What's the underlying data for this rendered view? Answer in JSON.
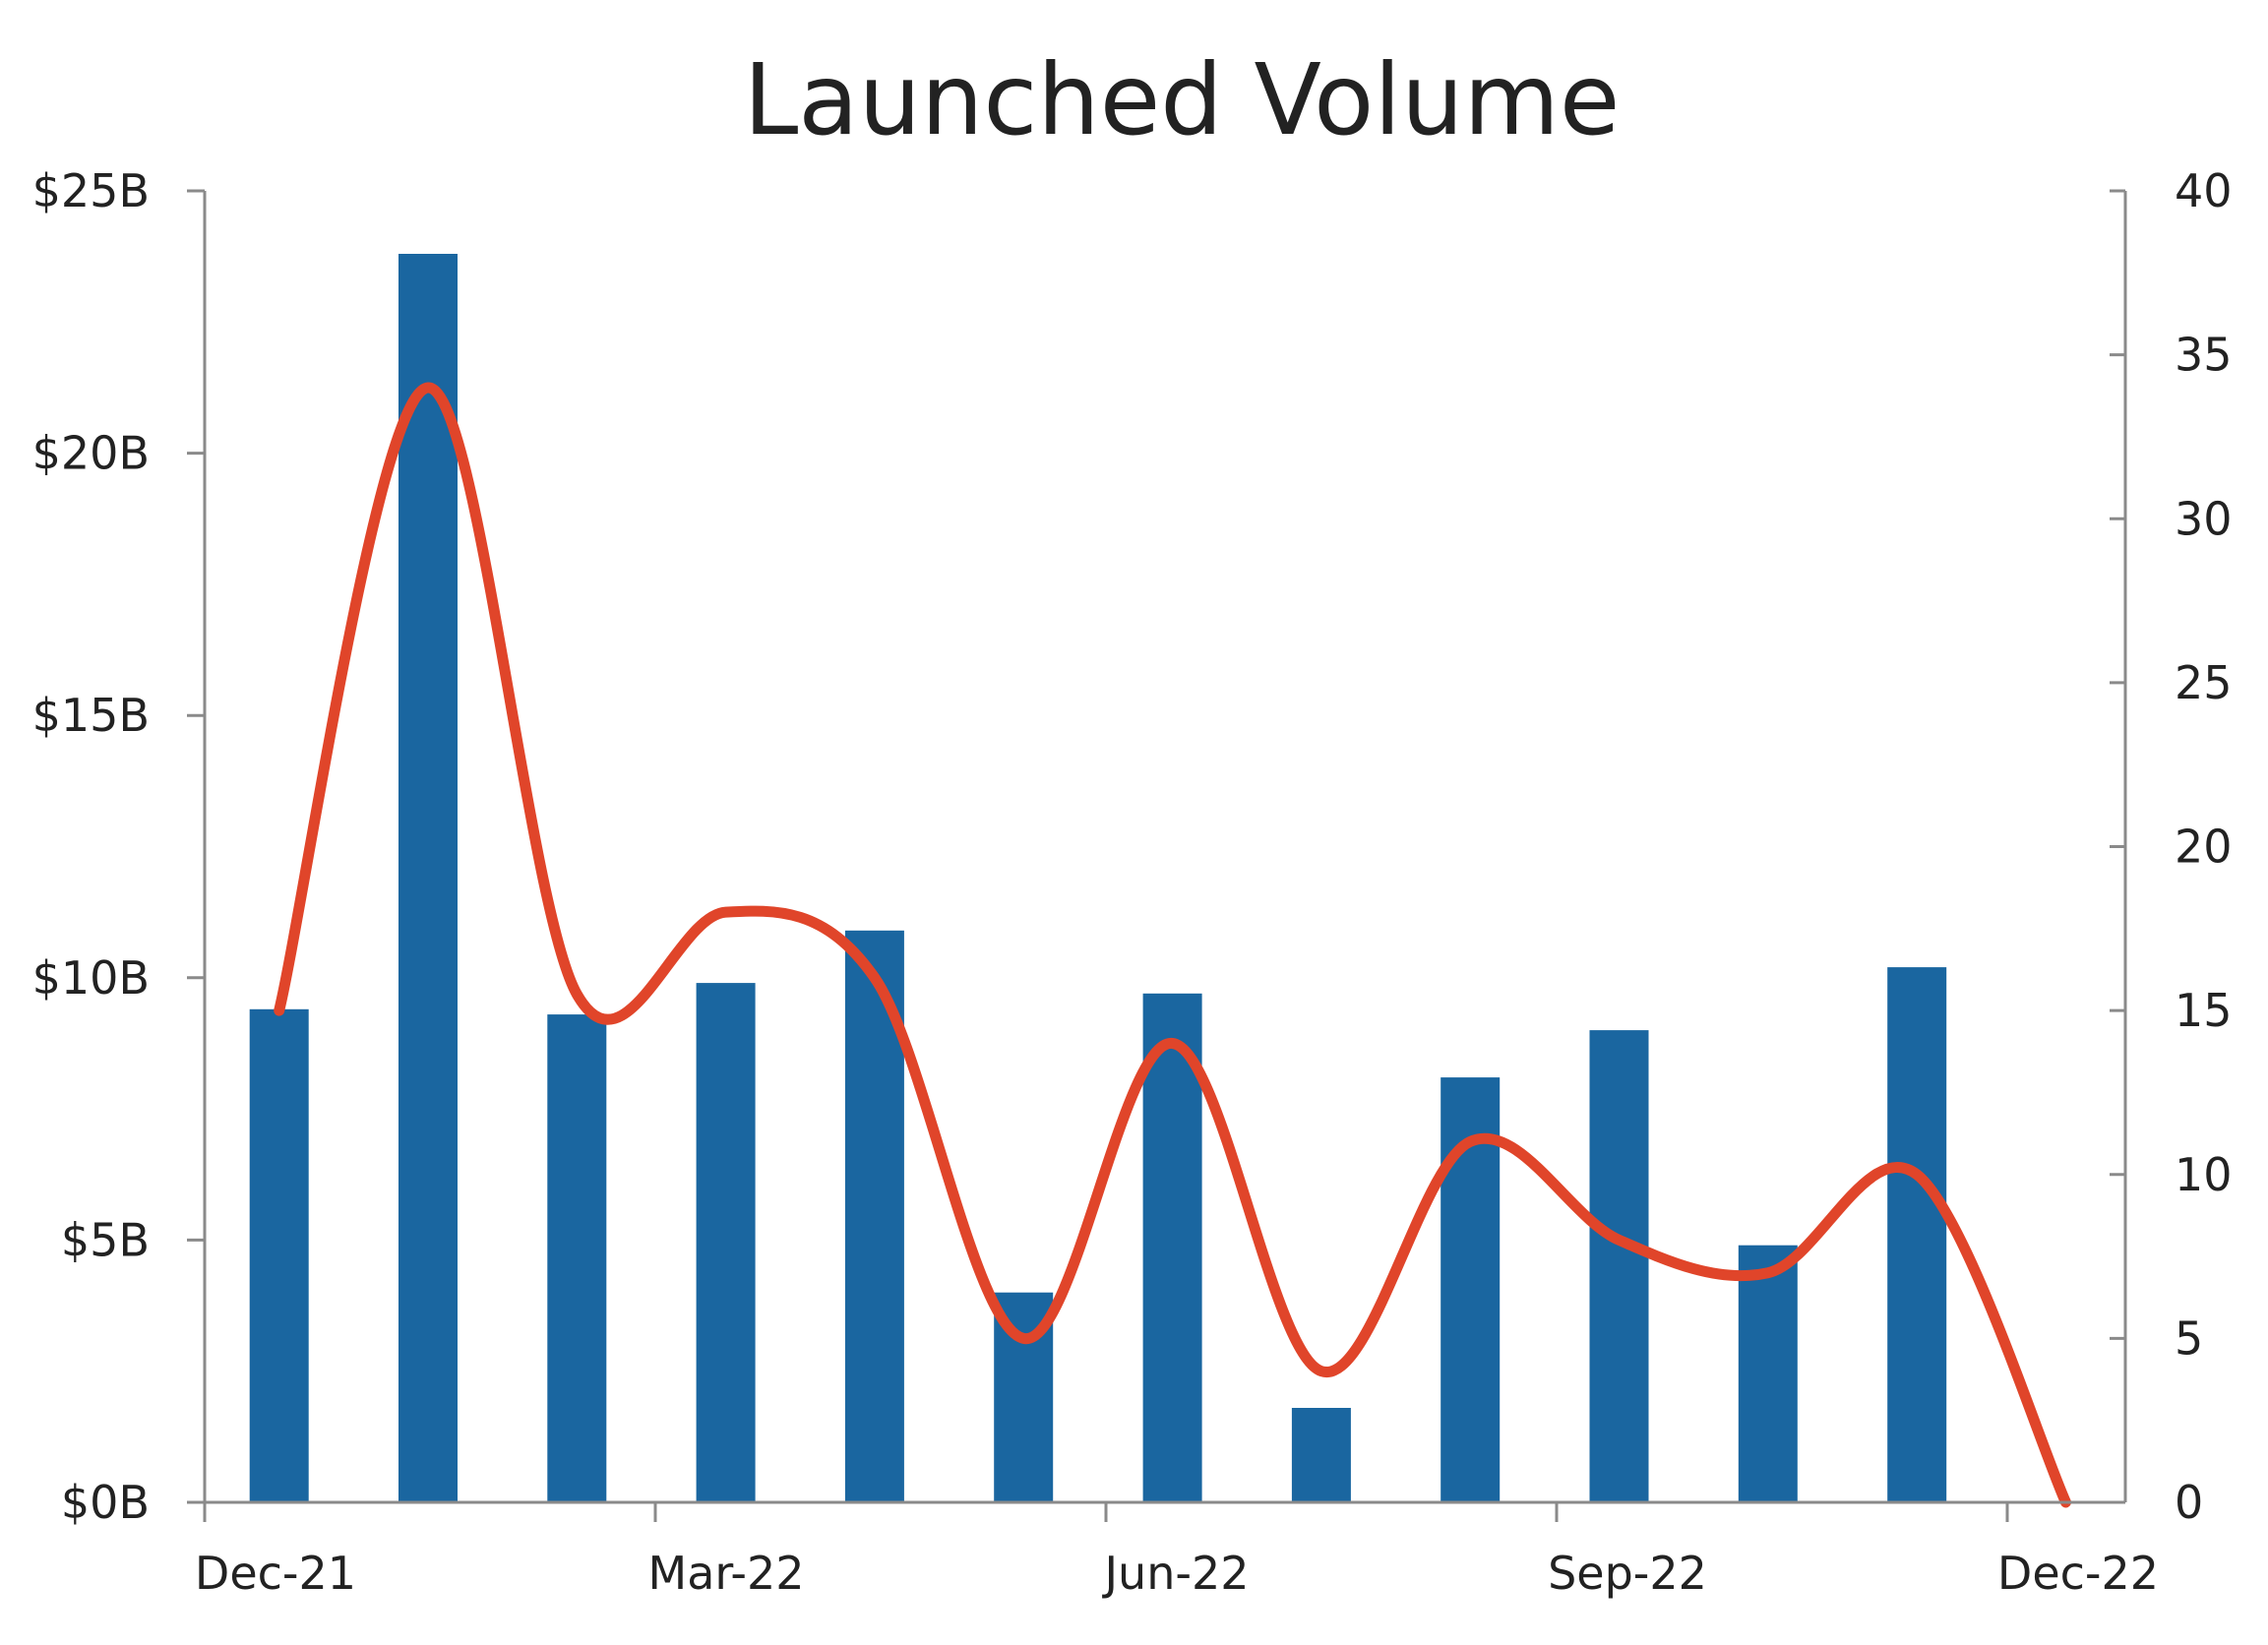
{
  "chart_data": {
    "type": "bar",
    "title": "Launched Volume",
    "x_tick_labels": [
      "Dec-21",
      "Mar-22",
      "Jun-22",
      "Sep-22",
      "Dec-22"
    ],
    "categories": [
      "Dec-21",
      "Jan-22",
      "Feb-22",
      "Mar-22",
      "Apr-22",
      "May-22",
      "Jun-22",
      "Jul-22",
      "Aug-22",
      "Sep-22",
      "Oct-22",
      "Nov-22",
      "Dec-22"
    ],
    "series": [
      {
        "type": "bar",
        "axis": "left",
        "color": "#1a66a0",
        "values": [
          9.4,
          23.8,
          9.3,
          9.9,
          10.9,
          4.0,
          9.7,
          1.8,
          8.1,
          9.0,
          4.9,
          10.2,
          null
        ]
      },
      {
        "type": "line",
        "axis": "right",
        "color": "#e0452a",
        "smooth": true,
        "values": [
          15,
          34,
          15.5,
          18,
          16,
          5,
          14,
          4,
          11,
          8,
          7,
          10,
          0
        ]
      }
    ],
    "y_left": {
      "min": 0,
      "max": 25,
      "ticks": [
        0,
        5,
        10,
        15,
        20,
        25
      ],
      "tick_labels": [
        "$0B",
        "$5B",
        "$10B",
        "$15B",
        "$20B",
        "$25B"
      ]
    },
    "y_right": {
      "min": 0,
      "max": 40,
      "ticks": [
        0,
        5,
        10,
        15,
        20,
        25,
        30,
        35,
        40
      ],
      "tick_labels": [
        "0",
        "5",
        "10",
        "15",
        "20",
        "25",
        "30",
        "35",
        "40"
      ]
    },
    "grid": false,
    "legend": "none"
  }
}
